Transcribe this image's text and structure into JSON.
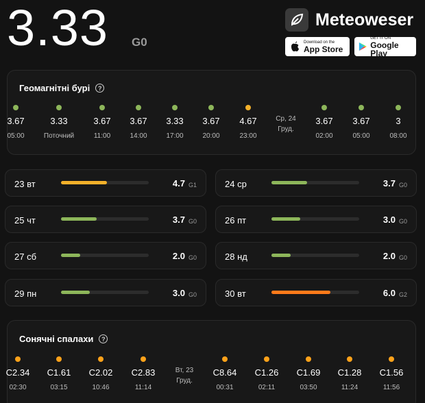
{
  "header": {
    "kp_value": "3.33",
    "kp_scale": "G0",
    "brand_name": "Meteoweser",
    "app_store": {
      "small": "Download on the",
      "big": "App Store"
    },
    "google_play": {
      "small": "GET IT ON",
      "big": "Google Play"
    }
  },
  "colors": {
    "green": "#8db65a",
    "yellow": "#f5b12a",
    "orange": "#ff7a1a",
    "flare": "#ffa21a"
  },
  "geomagnetic": {
    "title": "Геомагнітні бурі",
    "timeline": [
      {
        "value": "3.67",
        "time": "05:00",
        "color": "green"
      },
      {
        "value": "3.33",
        "time": "Поточний",
        "color": "green"
      },
      {
        "value": "3.67",
        "time": "11:00",
        "color": "green"
      },
      {
        "value": "3.67",
        "time": "14:00",
        "color": "green"
      },
      {
        "value": "3.33",
        "time": "17:00",
        "color": "green"
      },
      {
        "value": "3.67",
        "time": "20:00",
        "color": "green"
      },
      {
        "value": "4.67",
        "time": "23:00",
        "color": "yellow"
      },
      {
        "date1": "Ср, 24",
        "date2": "Груд."
      },
      {
        "value": "3.67",
        "time": "02:00",
        "color": "green"
      },
      {
        "value": "3.67",
        "time": "05:00",
        "color": "green"
      },
      {
        "value": "3",
        "time": "08:00",
        "color": "green"
      }
    ]
  },
  "days": [
    {
      "label": "23 вт",
      "value": "4.7",
      "g": "G1",
      "level": 0.52,
      "color": "yellow"
    },
    {
      "label": "24 ср",
      "value": "3.7",
      "g": "G0",
      "level": 0.41,
      "color": "green"
    },
    {
      "label": "25 чт",
      "value": "3.7",
      "g": "G0",
      "level": 0.41,
      "color": "green"
    },
    {
      "label": "26 пт",
      "value": "3.0",
      "g": "G0",
      "level": 0.33,
      "color": "green"
    },
    {
      "label": "27 сб",
      "value": "2.0",
      "g": "G0",
      "level": 0.22,
      "color": "green"
    },
    {
      "label": "28 нд",
      "value": "2.0",
      "g": "G0",
      "level": 0.22,
      "color": "green"
    },
    {
      "label": "29 пн",
      "value": "3.0",
      "g": "G0",
      "level": 0.33,
      "color": "green"
    },
    {
      "label": "30 вт",
      "value": "6.0",
      "g": "G2",
      "level": 0.67,
      "color": "orange"
    }
  ],
  "flares": {
    "title": "Сонячні спалахи",
    "timeline": [
      {
        "value": "C2.34",
        "time": "02:30"
      },
      {
        "value": "C1.61",
        "time": "03:15"
      },
      {
        "value": "C2.02",
        "time": "10:46"
      },
      {
        "value": "C2.83",
        "time": "11:14"
      },
      {
        "date1": "Вт, 23",
        "date2": "Груд."
      },
      {
        "value": "C8.64",
        "time": "00:31"
      },
      {
        "value": "C1.26",
        "time": "02:11"
      },
      {
        "value": "C1.69",
        "time": "03:50"
      },
      {
        "value": "C1.28",
        "time": "11:24"
      },
      {
        "value": "C1.56",
        "time": "11:56"
      }
    ]
  }
}
